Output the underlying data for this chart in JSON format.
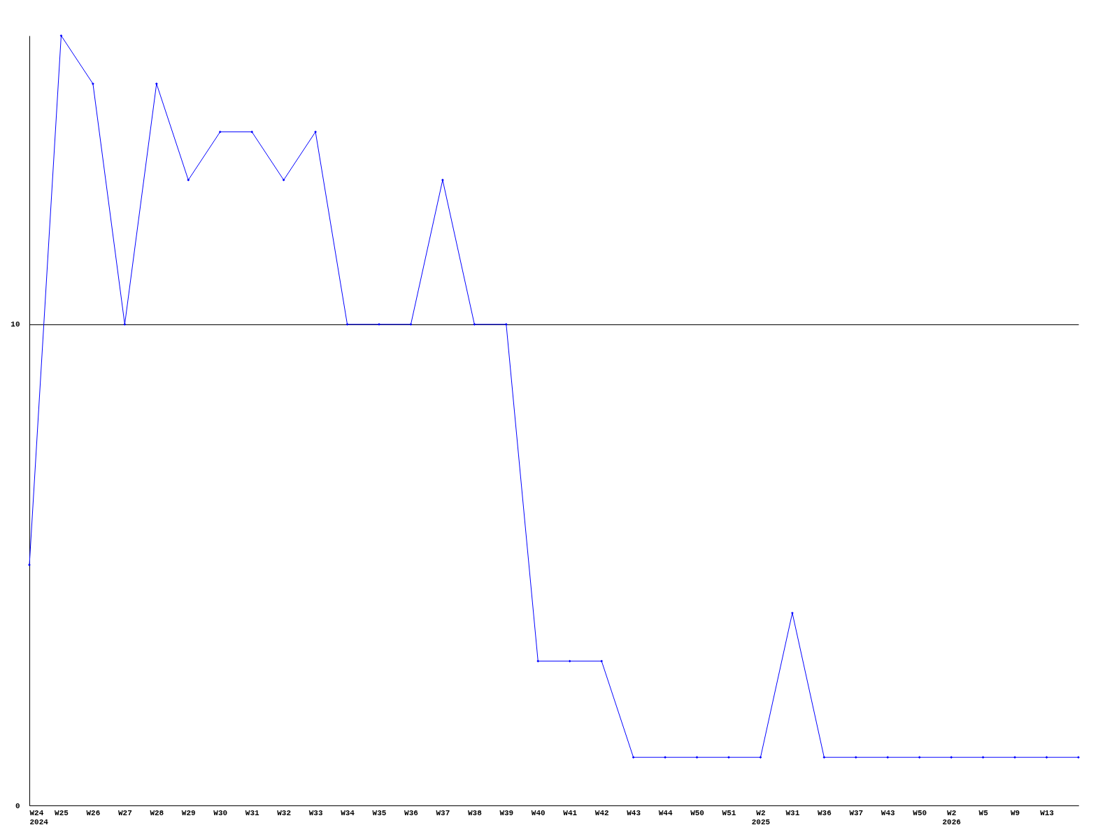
{
  "chart_data": {
    "type": "line",
    "categories": [
      "W24\n2024",
      "W25",
      "W26",
      "W27",
      "W28",
      "W29",
      "W30",
      "W31",
      "W32",
      "W33",
      "W34",
      "W35",
      "W36",
      "W37",
      "W38",
      "W39",
      "W40",
      "W41",
      "W42",
      "W43",
      "W44",
      "W50",
      "W51",
      "W2\n2025",
      "W31",
      "W36",
      "W37",
      "W43",
      "W50",
      "W2\n2026",
      "W5",
      "W9",
      "W13",
      null
    ],
    "series": [
      {
        "color": "#0000ff",
        "values": [
          5,
          16,
          15,
          10,
          15,
          13,
          14,
          14,
          13,
          14,
          10,
          10,
          10,
          13,
          10,
          10,
          3,
          3,
          3,
          1,
          1,
          1,
          1,
          1,
          4,
          1,
          1,
          1,
          1,
          1,
          1,
          1,
          1,
          1
        ]
      }
    ],
    "ylim": [
      0,
      16
    ],
    "yticks": [
      0,
      10
    ],
    "grid": "y",
    "marker": "diamond",
    "line_style": "solid"
  }
}
